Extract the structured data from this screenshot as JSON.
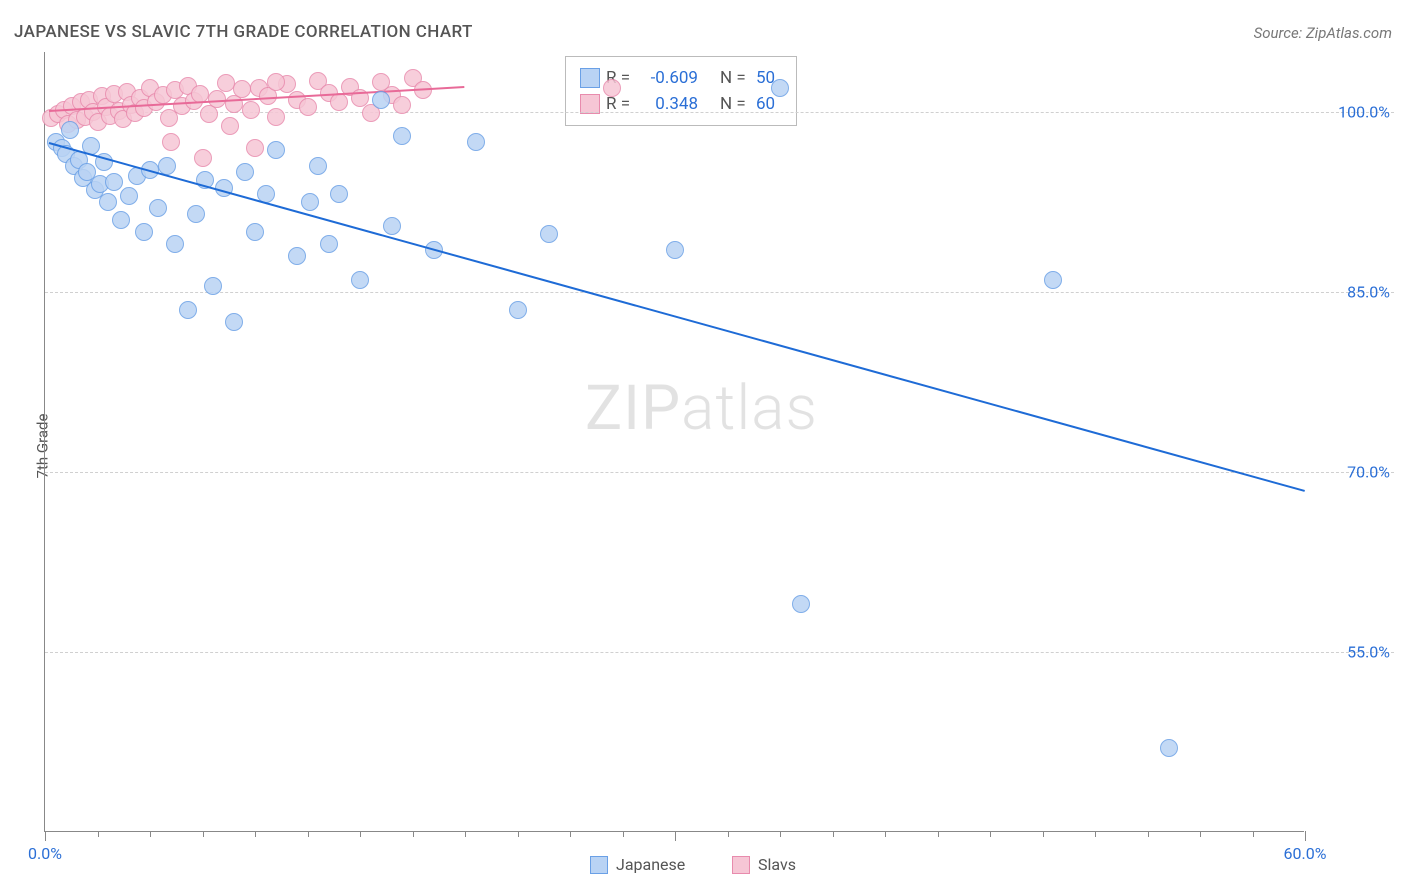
{
  "title": "JAPANESE VS SLAVIC 7TH GRADE CORRELATION CHART",
  "source": "Source: ZipAtlas.com",
  "yaxis_label": "7th Grade",
  "watermark_a": "ZIP",
  "watermark_b": "atlas",
  "chart": {
    "type": "scatter",
    "xlim": [
      0,
      60
    ],
    "ylim": [
      40,
      105
    ],
    "y_ticks": [
      55.0,
      70.0,
      85.0,
      100.0
    ],
    "y_tick_labels": [
      "55.0%",
      "70.0%",
      "85.0%",
      "100.0%"
    ],
    "x_minor_step": 2.5,
    "x_major": [
      0,
      30,
      60
    ],
    "x_labels": {
      "0": "0.0%",
      "60": "60.0%"
    },
    "background_color": "#ffffff",
    "grid_color": "#d8d8d8",
    "axis_color": "#888888",
    "marker_radius": 9,
    "marker_stroke_width": 1,
    "series": {
      "japanese": {
        "label": "Japanese",
        "fill": "#b9d3f4",
        "stroke": "#6aa0e6",
        "line_color": "#1e6bd6",
        "R": "-0.609",
        "N": "50",
        "trend": {
          "x1": 0.2,
          "y1": 97.5,
          "x2": 60,
          "y2": 68.5
        },
        "points": [
          [
            0.5,
            97.5
          ],
          [
            0.8,
            97.0
          ],
          [
            1.0,
            96.5
          ],
          [
            1.2,
            98.5
          ],
          [
            1.4,
            95.5
          ],
          [
            1.6,
            96.0
          ],
          [
            1.8,
            94.5
          ],
          [
            2.0,
            95.0
          ],
          [
            2.2,
            97.2
          ],
          [
            2.4,
            93.5
          ],
          [
            2.6,
            94.0
          ],
          [
            2.8,
            95.8
          ],
          [
            3.0,
            92.5
          ],
          [
            3.3,
            94.2
          ],
          [
            3.6,
            91.0
          ],
          [
            4.0,
            93.0
          ],
          [
            4.4,
            94.7
          ],
          [
            4.7,
            90.0
          ],
          [
            5.0,
            95.2
          ],
          [
            5.4,
            92.0
          ],
          [
            5.8,
            95.5
          ],
          [
            6.2,
            89.0
          ],
          [
            6.8,
            83.5
          ],
          [
            7.2,
            91.5
          ],
          [
            7.6,
            94.3
          ],
          [
            8.0,
            85.5
          ],
          [
            8.5,
            93.7
          ],
          [
            9.0,
            82.5
          ],
          [
            9.5,
            95.0
          ],
          [
            10.0,
            90.0
          ],
          [
            10.5,
            93.2
          ],
          [
            11.0,
            96.8
          ],
          [
            12.0,
            88.0
          ],
          [
            12.6,
            92.5
          ],
          [
            13.0,
            95.5
          ],
          [
            13.5,
            89.0
          ],
          [
            14.0,
            93.2
          ],
          [
            15.0,
            86.0
          ],
          [
            16.0,
            101.0
          ],
          [
            16.5,
            90.5
          ],
          [
            17.0,
            98.0
          ],
          [
            18.5,
            88.5
          ],
          [
            20.5,
            97.5
          ],
          [
            22.5,
            83.5
          ],
          [
            24.0,
            89.8
          ],
          [
            30.0,
            88.5
          ],
          [
            35.0,
            102.0
          ],
          [
            36.0,
            59.0
          ],
          [
            48.0,
            86.0
          ],
          [
            53.5,
            47.0
          ]
        ]
      },
      "slavs": {
        "label": "Slavs",
        "fill": "#f6c6d5",
        "stroke": "#e88bad",
        "line_color": "#e86a98",
        "R": "0.348",
        "N": "60",
        "trend": {
          "x1": 0.2,
          "y1": 100.2,
          "x2": 20,
          "y2": 102.2
        },
        "points": [
          [
            0.3,
            99.5
          ],
          [
            0.6,
            99.8
          ],
          [
            0.9,
            100.2
          ],
          [
            1.1,
            99.0
          ],
          [
            1.3,
            100.5
          ],
          [
            1.5,
            99.3
          ],
          [
            1.7,
            100.8
          ],
          [
            1.9,
            99.6
          ],
          [
            2.1,
            101.0
          ],
          [
            2.3,
            100.0
          ],
          [
            2.5,
            99.2
          ],
          [
            2.7,
            101.3
          ],
          [
            2.9,
            100.4
          ],
          [
            3.1,
            99.7
          ],
          [
            3.3,
            101.5
          ],
          [
            3.5,
            100.1
          ],
          [
            3.7,
            99.4
          ],
          [
            3.9,
            101.7
          ],
          [
            4.1,
            100.6
          ],
          [
            4.3,
            99.9
          ],
          [
            4.5,
            101.2
          ],
          [
            4.7,
            100.3
          ],
          [
            5.0,
            102.0
          ],
          [
            5.3,
            100.8
          ],
          [
            5.6,
            101.4
          ],
          [
            5.9,
            99.5
          ],
          [
            6.2,
            101.8
          ],
          [
            6.5,
            100.5
          ],
          [
            6.8,
            102.2
          ],
          [
            7.1,
            100.9
          ],
          [
            7.4,
            101.5
          ],
          [
            7.8,
            99.8
          ],
          [
            8.2,
            101.1
          ],
          [
            8.6,
            102.4
          ],
          [
            9.0,
            100.7
          ],
          [
            9.4,
            101.9
          ],
          [
            9.8,
            100.2
          ],
          [
            10.2,
            102.0
          ],
          [
            10.6,
            101.3
          ],
          [
            11.0,
            99.6
          ],
          [
            11.5,
            102.3
          ],
          [
            12.0,
            101.0
          ],
          [
            12.5,
            100.4
          ],
          [
            13.0,
            102.6
          ],
          [
            13.5,
            101.6
          ],
          [
            14.0,
            100.8
          ],
          [
            14.5,
            102.1
          ],
          [
            15.0,
            101.2
          ],
          [
            15.5,
            99.9
          ],
          [
            16.0,
            102.5
          ],
          [
            16.5,
            101.4
          ],
          [
            17.0,
            100.6
          ],
          [
            17.5,
            102.8
          ],
          [
            18.0,
            101.8
          ],
          [
            6.0,
            97.5
          ],
          [
            7.5,
            96.2
          ],
          [
            8.8,
            98.8
          ],
          [
            10.0,
            97.0
          ],
          [
            11.0,
            102.5
          ],
          [
            27.0,
            102.0
          ]
        ]
      }
    }
  },
  "legend": {
    "r_label": "R =",
    "n_label": "N ="
  },
  "bottom_legend": {
    "japanese": "Japanese",
    "slavs": "Slavs"
  }
}
